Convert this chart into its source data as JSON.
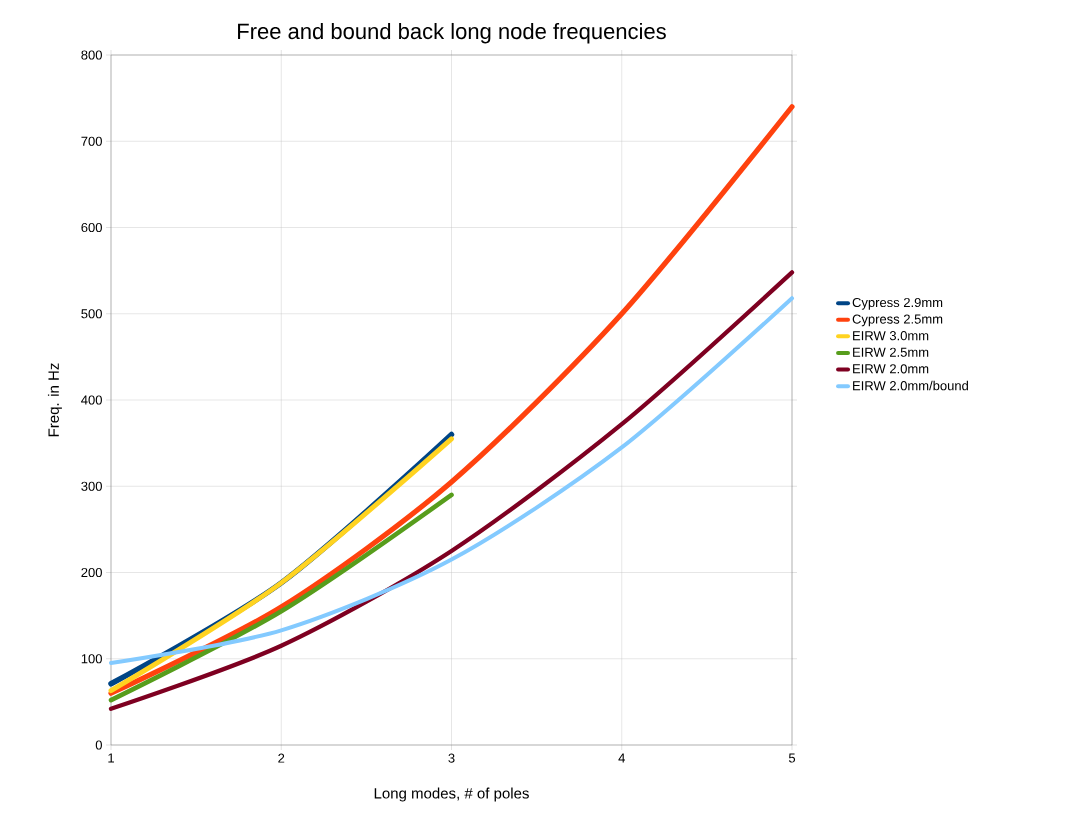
{
  "chart_data": {
    "type": "line",
    "title": "Free and bound back long node frequencies",
    "xlabel": "Long modes, # of poles",
    "ylabel": "Freq. in Hz",
    "xlim": [
      1,
      5
    ],
    "ylim": [
      0,
      800
    ],
    "xticks": [
      1,
      2,
      3,
      4,
      5
    ],
    "yticks": [
      0,
      100,
      200,
      300,
      400,
      500,
      600,
      700,
      800
    ],
    "grid": true,
    "legend": "right",
    "marker": "none",
    "line_style": "solid",
    "series": [
      {
        "name": "Cypress 2.9mm",
        "color": "#004586",
        "x": [
          1,
          2,
          3
        ],
        "values": [
          71,
          188,
          360
        ]
      },
      {
        "name": "Cypress 2.5mm",
        "color": "#ff420e",
        "x": [
          1,
          2,
          3,
          4,
          5
        ],
        "values": [
          60,
          160,
          305,
          500,
          740
        ]
      },
      {
        "name": "EIRW 3.0mm",
        "color": "#ffd320",
        "x": [
          1,
          2,
          3
        ],
        "values": [
          63,
          188,
          355
        ]
      },
      {
        "name": "EIRW 2.5mm",
        "color": "#579d1c",
        "x": [
          1,
          2,
          3
        ],
        "values": [
          52,
          155,
          290
        ]
      },
      {
        "name": "EIRW 2.0mm",
        "color": "#7e0021",
        "x": [
          1,
          2,
          3,
          4,
          5
        ],
        "values": [
          42,
          115,
          225,
          372,
          548
        ]
      },
      {
        "name": "EIRW 2.0mm/bound",
        "color": "#83caff",
        "x": [
          1,
          2,
          3,
          4,
          5
        ],
        "values": [
          95,
          133,
          215,
          345,
          518
        ]
      }
    ]
  }
}
